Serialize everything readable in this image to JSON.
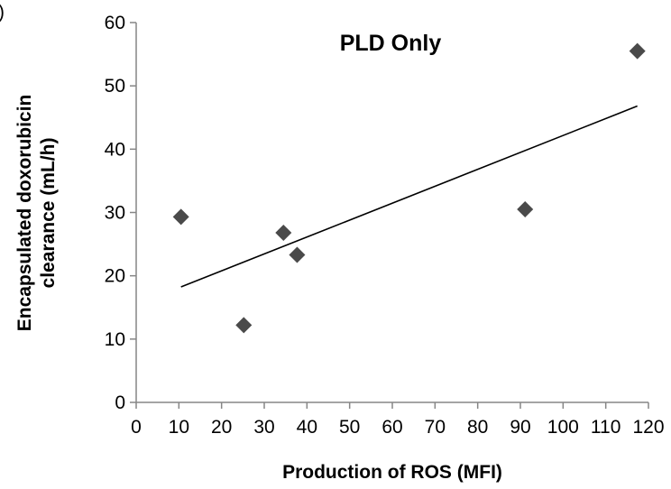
{
  "panel_letter": ")",
  "chart_data": {
    "type": "scatter",
    "title": "PLD Only",
    "xlabel": "Production of ROS (MFI)",
    "ylabel_line1": "Encapsulated doxorubicin",
    "ylabel_line2": "clearance (mL/h)",
    "xlim": [
      0,
      120
    ],
    "ylim": [
      0,
      60
    ],
    "x_ticks": [
      0,
      10,
      20,
      30,
      40,
      50,
      60,
      70,
      80,
      90,
      100,
      110,
      120
    ],
    "y_ticks": [
      0,
      10,
      20,
      30,
      40,
      50,
      60
    ],
    "grid": false,
    "marker": "diamond",
    "marker_color": "#4a4a4a",
    "points": [
      {
        "x": 10.5,
        "y": 29.3
      },
      {
        "x": 25.2,
        "y": 12.2
      },
      {
        "x": 34.5,
        "y": 26.8
      },
      {
        "x": 37.7,
        "y": 23.3
      },
      {
        "x": 91.1,
        "y": 30.5
      },
      {
        "x": 117.4,
        "y": 55.5
      }
    ],
    "trendline": {
      "x_start": 10.5,
      "x_end": 117.4,
      "slope": 0.2673,
      "intercept": 15.43,
      "color": "#000000"
    }
  }
}
